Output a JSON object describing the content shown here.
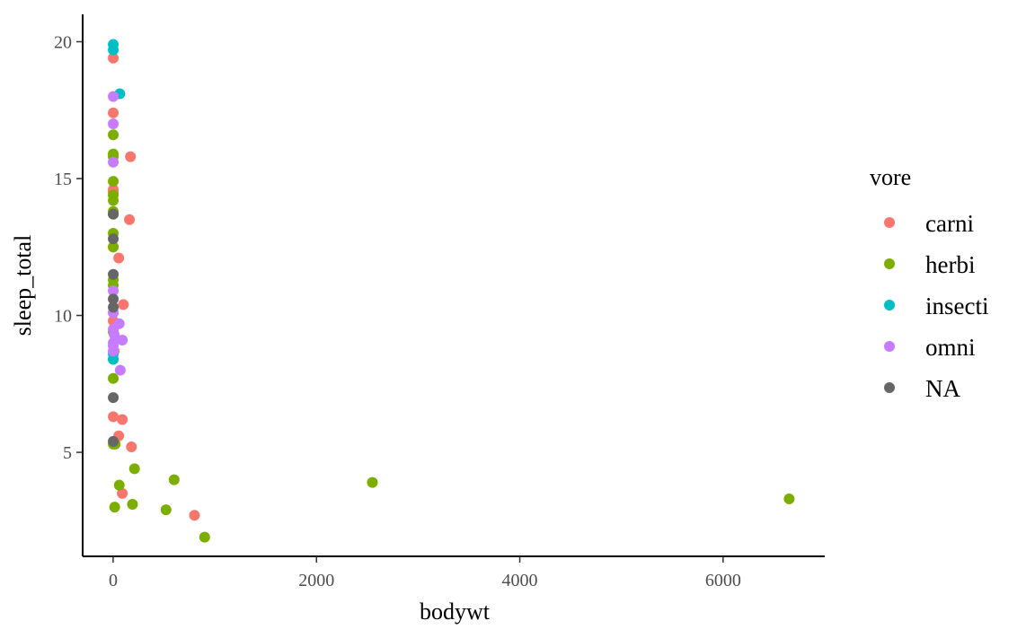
{
  "chart_data": {
    "type": "scatter",
    "title": "",
    "xlabel": "bodywt",
    "ylabel": "sleep_total",
    "xlim": [
      -300,
      7000
    ],
    "ylim": [
      1.2,
      21
    ],
    "xticks": [
      0,
      2000,
      4000,
      6000
    ],
    "yticks": [
      5,
      10,
      15,
      20
    ],
    "grid": false,
    "legend": {
      "title": "vore",
      "position": "right",
      "entries": [
        {
          "name": "carni",
          "color": "#F8766D"
        },
        {
          "name": "herbi",
          "color": "#7CAE00"
        },
        {
          "name": "insecti",
          "color": "#00BFC4"
        },
        {
          "name": "omni",
          "color": "#C77CFF"
        },
        {
          "name": "NA",
          "color": "#666666"
        }
      ]
    },
    "series": [
      {
        "name": "carni",
        "color": "#F8766D",
        "points": [
          [
            1,
            19.4
          ],
          [
            1,
            17.4
          ],
          [
            170,
            15.8
          ],
          [
            1,
            14.6
          ],
          [
            1,
            14.5
          ],
          [
            160,
            13.5
          ],
          [
            1,
            12.5
          ],
          [
            55,
            12.1
          ],
          [
            100,
            10.4
          ],
          [
            1,
            10.1
          ],
          [
            1,
            9.8
          ],
          [
            10,
            8.7
          ],
          [
            1,
            6.3
          ],
          [
            90,
            6.2
          ],
          [
            55,
            5.6
          ],
          [
            180,
            5.2
          ],
          [
            90,
            3.5
          ],
          [
            800,
            2.7
          ]
        ]
      },
      {
        "name": "herbi",
        "color": "#7CAE00",
        "points": [
          [
            1,
            16.6
          ],
          [
            1,
            15.9
          ],
          [
            1,
            15.8
          ],
          [
            1,
            14.9
          ],
          [
            1,
            14.4
          ],
          [
            1,
            14.2
          ],
          [
            1,
            13.8
          ],
          [
            1,
            13.7
          ],
          [
            1,
            13.0
          ],
          [
            1,
            12.5
          ],
          [
            1,
            11.3
          ],
          [
            1,
            11.1
          ],
          [
            1,
            9.4
          ],
          [
            1,
            8.4
          ],
          [
            1,
            7.7
          ],
          [
            1,
            5.3
          ],
          [
            20,
            5.3
          ],
          [
            210,
            4.4
          ],
          [
            600,
            4.0
          ],
          [
            2550,
            3.9
          ],
          [
            60,
            3.8
          ],
          [
            6650,
            3.3
          ],
          [
            190,
            3.1
          ],
          [
            15,
            3.0
          ],
          [
            520,
            2.9
          ],
          [
            900,
            1.9
          ]
        ]
      },
      {
        "name": "insecti",
        "color": "#00BFC4",
        "points": [
          [
            1,
            19.9
          ],
          [
            1,
            19.7
          ],
          [
            65,
            18.1
          ],
          [
            1,
            8.6
          ],
          [
            1,
            8.4
          ]
        ]
      },
      {
        "name": "omni",
        "color": "#C77CFF",
        "points": [
          [
            1,
            18.0
          ],
          [
            1,
            17.0
          ],
          [
            1,
            15.6
          ],
          [
            1,
            10.9
          ],
          [
            1,
            10.1
          ],
          [
            60,
            9.7
          ],
          [
            1,
            9.5
          ],
          [
            10,
            9.3
          ],
          [
            90,
            9.1
          ],
          [
            1,
            9.0
          ],
          [
            1,
            8.9
          ],
          [
            1,
            8.7
          ],
          [
            70,
            8.0
          ]
        ]
      },
      {
        "name": "NA",
        "color": "#666666",
        "points": [
          [
            1,
            13.7
          ],
          [
            1,
            12.8
          ],
          [
            1,
            11.5
          ],
          [
            1,
            10.6
          ],
          [
            1,
            10.3
          ],
          [
            1,
            7.0
          ],
          [
            1,
            5.4
          ]
        ]
      }
    ]
  }
}
